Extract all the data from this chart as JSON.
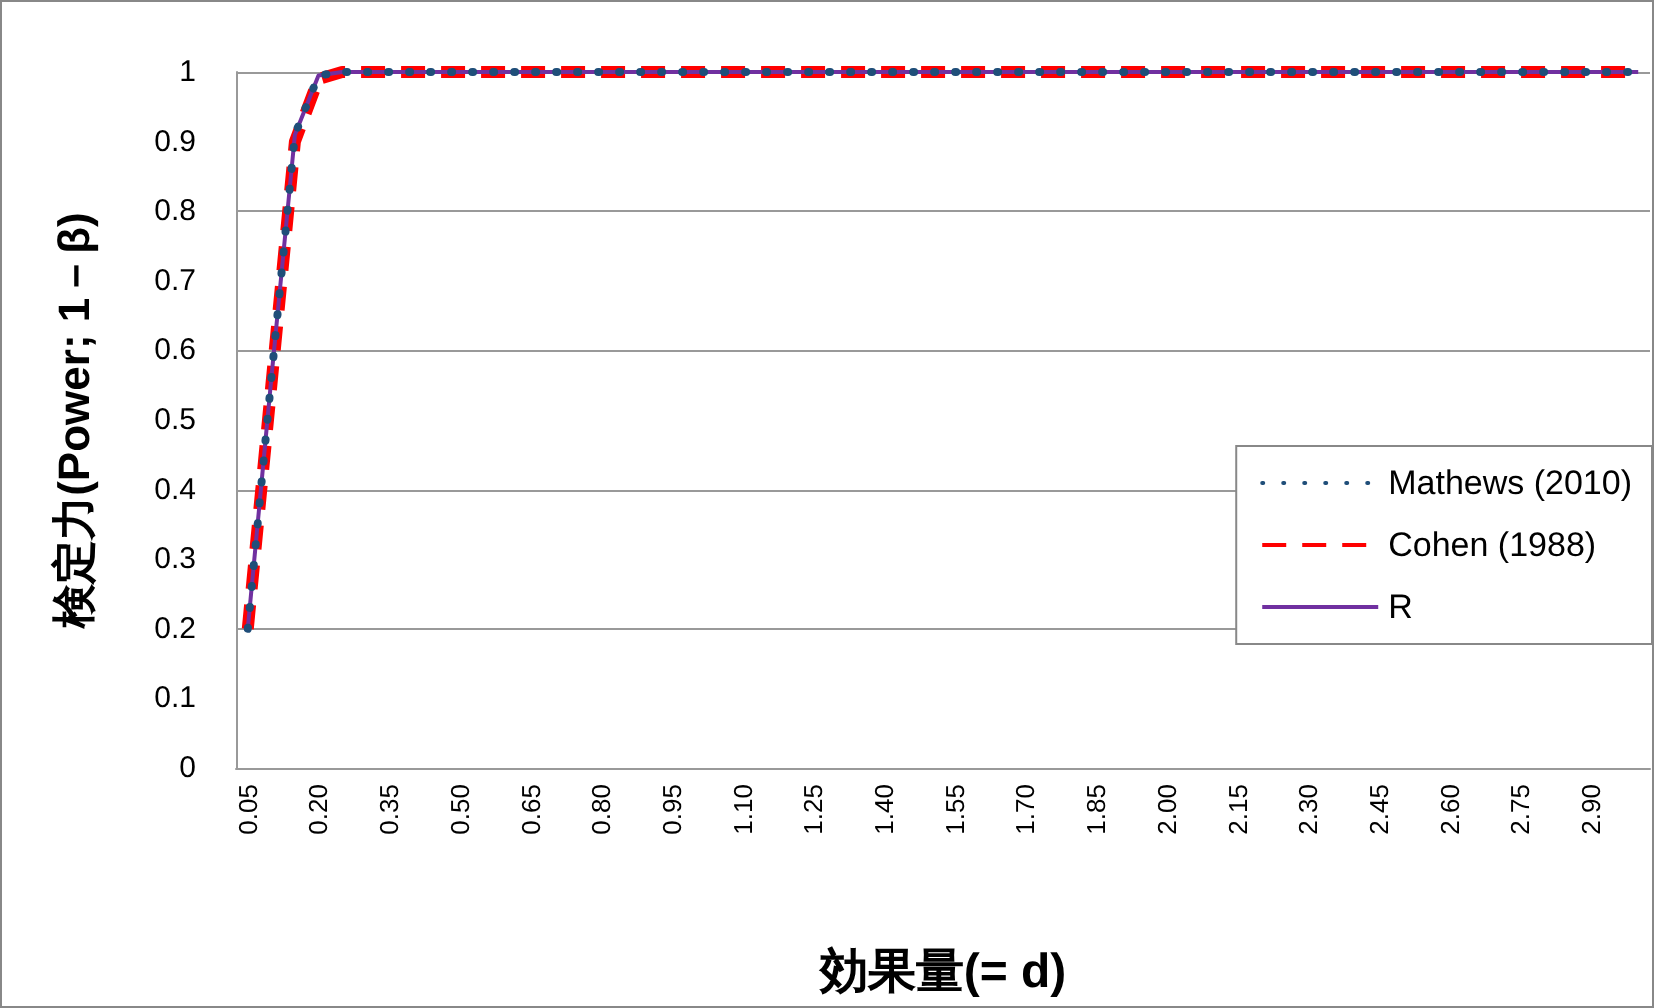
{
  "chart_data": {
    "type": "line",
    "xlabel": "効果量(= d)",
    "ylabel": "検定力(Power; 1－β)",
    "categories": [
      "0.05",
      null,
      null,
      "0.20",
      null,
      null,
      "0.35",
      null,
      null,
      "0.50",
      null,
      null,
      "0.65",
      null,
      null,
      "0.80",
      null,
      null,
      "0.95",
      null,
      null,
      "1.10",
      null,
      null,
      "1.25",
      null,
      null,
      "1.40",
      null,
      null,
      "1.55",
      null,
      null,
      "1.70",
      null,
      null,
      "1.85",
      null,
      null,
      "2.00",
      null,
      null,
      "2.15",
      null,
      null,
      "2.30",
      null,
      null,
      "2.45",
      null,
      null,
      "2.60",
      null,
      null,
      "2.75",
      null,
      null,
      "2.90",
      null,
      null
    ],
    "series": [
      {
        "name": "Mathews (2010)",
        "color": "#1f4e79",
        "line_style": "dotted",
        "values": [
          0.2,
          0.56,
          0.91,
          0.995,
          1,
          1,
          1,
          1,
          1,
          1,
          1,
          1,
          1,
          1,
          1,
          1,
          1,
          1,
          1,
          1,
          1,
          1,
          1,
          1,
          1,
          1,
          1,
          1,
          1,
          1,
          1,
          1,
          1,
          1,
          1,
          1,
          1,
          1,
          1,
          1,
          1,
          1,
          1,
          1,
          1,
          1,
          1,
          1,
          1,
          1,
          1,
          1,
          1,
          1,
          1,
          1,
          1,
          1,
          1,
          1
        ]
      },
      {
        "name": "Cohen (1988)",
        "color": "#ff0000",
        "line_style": "dashed",
        "values": [
          0.2,
          0.55,
          0.9,
          0.99,
          1,
          1,
          1,
          1,
          1,
          1,
          1,
          1,
          1,
          1,
          1,
          1,
          1,
          1,
          1,
          1,
          1,
          1,
          1,
          1,
          1,
          1,
          1,
          1,
          1,
          1,
          1,
          1,
          1,
          1,
          1,
          1,
          1,
          1,
          1,
          1,
          1,
          1,
          1,
          1,
          1,
          1,
          1,
          1,
          1,
          1,
          1,
          1,
          1,
          1,
          1,
          1,
          1,
          1,
          1,
          1
        ]
      },
      {
        "name": "R",
        "color": "#7030a0",
        "line_style": "solid",
        "values": [
          0.2,
          0.56,
          0.91,
          0.995,
          1,
          1,
          1,
          1,
          1,
          1,
          1,
          1,
          1,
          1,
          1,
          1,
          1,
          1,
          1,
          1,
          1,
          1,
          1,
          1,
          1,
          1,
          1,
          1,
          1,
          1,
          1,
          1,
          1,
          1,
          1,
          1,
          1,
          1,
          1,
          1,
          1,
          1,
          1,
          1,
          1,
          1,
          1,
          1,
          1,
          1,
          1,
          1,
          1,
          1,
          1,
          1,
          1,
          1,
          1,
          1
        ]
      }
    ],
    "ylim": [
      0,
      1
    ],
    "yticks": [
      0,
      0.1,
      0.2,
      0.3,
      0.4,
      0.5,
      0.6,
      0.7,
      0.8,
      0.9,
      1
    ],
    "grid": "y",
    "legend": "right",
    "marker": "none"
  }
}
